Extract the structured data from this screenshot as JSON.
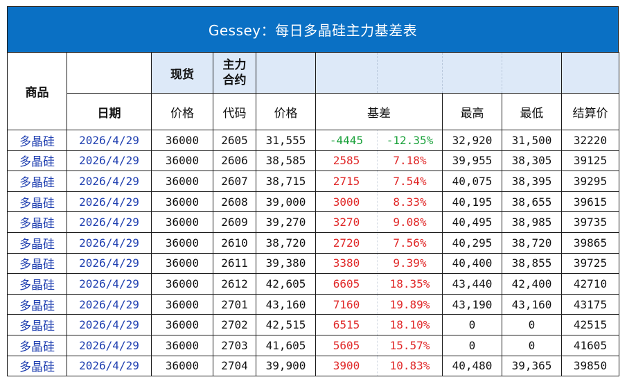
{
  "title": "Gessey：每日多晶硅主力基差表",
  "headers": {
    "product": "商品",
    "spot": "现货",
    "contract_line1": "主力",
    "contract_line2": "合约",
    "date": "日期",
    "spot_price": "价格",
    "code": "代码",
    "price": "价格",
    "basis": "基差",
    "high": "最高",
    "low": "最低",
    "settle": "结算价"
  },
  "colors": {
    "title_bg": "#0a70c4",
    "header_shade": "#dde9f8",
    "positive": "#e02828",
    "negative": "#1aa13a",
    "link_blue": "#1f3fb0"
  },
  "rows": [
    {
      "product": "多晶硅",
      "date": "2026/4/29",
      "spot": "36000",
      "code": "2605",
      "price": "31,555",
      "basis": "-4445",
      "basis_pct": "-12.35%",
      "high": "32,920",
      "low": "31,500",
      "settle": "32220",
      "sign": "neg"
    },
    {
      "product": "多晶硅",
      "date": "2026/4/29",
      "spot": "36000",
      "code": "2606",
      "price": "38,585",
      "basis": "2585",
      "basis_pct": "7.18%",
      "high": "39,955",
      "low": "38,305",
      "settle": "39125",
      "sign": "pos"
    },
    {
      "product": "多晶硅",
      "date": "2026/4/29",
      "spot": "36000",
      "code": "2607",
      "price": "38,715",
      "basis": "2715",
      "basis_pct": "7.54%",
      "high": "40,075",
      "low": "38,395",
      "settle": "39295",
      "sign": "pos"
    },
    {
      "product": "多晶硅",
      "date": "2026/4/29",
      "spot": "36000",
      "code": "2608",
      "price": "39,000",
      "basis": "3000",
      "basis_pct": "8.33%",
      "high": "40,195",
      "low": "38,655",
      "settle": "39615",
      "sign": "pos"
    },
    {
      "product": "多晶硅",
      "date": "2026/4/29",
      "spot": "36000",
      "code": "2609",
      "price": "39,270",
      "basis": "3270",
      "basis_pct": "9.08%",
      "high": "40,495",
      "low": "38,985",
      "settle": "39735",
      "sign": "pos"
    },
    {
      "product": "多晶硅",
      "date": "2026/4/29",
      "spot": "36000",
      "code": "2610",
      "price": "38,720",
      "basis": "2720",
      "basis_pct": "7.56%",
      "high": "40,295",
      "low": "38,720",
      "settle": "39865",
      "sign": "pos"
    },
    {
      "product": "多晶硅",
      "date": "2026/4/29",
      "spot": "36000",
      "code": "2611",
      "price": "39,380",
      "basis": "3380",
      "basis_pct": "9.39%",
      "high": "40,400",
      "low": "38,855",
      "settle": "39725",
      "sign": "pos"
    },
    {
      "product": "多晶硅",
      "date": "2026/4/29",
      "spot": "36000",
      "code": "2612",
      "price": "42,605",
      "basis": "6605",
      "basis_pct": "18.35%",
      "high": "43,440",
      "low": "42,400",
      "settle": "42710",
      "sign": "pos"
    },
    {
      "product": "多晶硅",
      "date": "2026/4/29",
      "spot": "36000",
      "code": "2701",
      "price": "43,160",
      "basis": "7160",
      "basis_pct": "19.89%",
      "high": "43,190",
      "low": "43,160",
      "settle": "43175",
      "sign": "pos"
    },
    {
      "product": "多晶硅",
      "date": "2026/4/29",
      "spot": "36000",
      "code": "2702",
      "price": "42,515",
      "basis": "6515",
      "basis_pct": "18.10%",
      "high": "0",
      "low": "0",
      "settle": "42515",
      "sign": "pos"
    },
    {
      "product": "多晶硅",
      "date": "2026/4/29",
      "spot": "36000",
      "code": "2703",
      "price": "41,605",
      "basis": "5605",
      "basis_pct": "15.57%",
      "high": "0",
      "low": "0",
      "settle": "41605",
      "sign": "pos"
    },
    {
      "product": "多晶硅",
      "date": "2026/4/29",
      "spot": "36000",
      "code": "2704",
      "price": "39,900",
      "basis": "3900",
      "basis_pct": "10.83%",
      "high": "40,480",
      "low": "39,365",
      "settle": "39850",
      "sign": "pos"
    }
  ]
}
